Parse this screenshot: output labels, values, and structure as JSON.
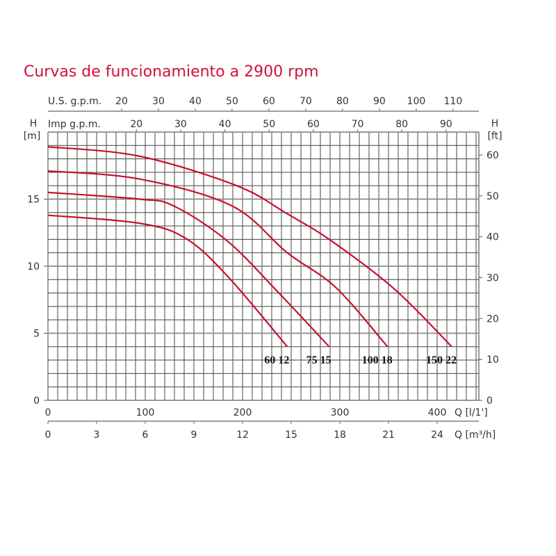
{
  "chart_data": {
    "type": "line",
    "title": "Curvas de funcionamiento a 2900 rpm",
    "curve_color": "#c8102e",
    "title_color": "#d0103a",
    "grid": true,
    "x_axis": {
      "label": "Q [l/1']",
      "range": [
        0,
        443
      ],
      "ticks": [
        0,
        100,
        200,
        300,
        400
      ],
      "minor_step": 10
    },
    "x_axis_m3h": {
      "label": "Q [m³/h]",
      "ticks": [
        0,
        3,
        6,
        9,
        12,
        15,
        18,
        21,
        24
      ]
    },
    "top_axis_us": {
      "label": "U.S. g.p.m.",
      "ticks": [
        20,
        30,
        40,
        50,
        60,
        70,
        80,
        90,
        100,
        110
      ]
    },
    "top_axis_imp": {
      "label": "Imp g.p.m.",
      "ticks": [
        20,
        30,
        40,
        50,
        60,
        70,
        80,
        90
      ]
    },
    "y_axis": {
      "label": "H",
      "unit": "[m]",
      "range": [
        0,
        20
      ],
      "ticks": [
        0,
        5,
        10,
        15
      ],
      "minor_step": 1
    },
    "y_axis_right": {
      "label": "H",
      "unit": "[ft]",
      "ticks": [
        0,
        10,
        20,
        30,
        40,
        50,
        60
      ]
    },
    "series": [
      {
        "name": "60 12",
        "x": [
          0,
          94,
          141,
          184,
          246
        ],
        "y": [
          13.8,
          13.2,
          12.1,
          9.3,
          4.0
        ]
      },
      {
        "name": "75 15",
        "x": [
          0,
          94,
          129,
          184,
          236,
          289
        ],
        "y": [
          15.5,
          15.0,
          14.5,
          11.9,
          8.1,
          4.0
        ]
      },
      {
        "name": "100 18",
        "x": [
          0,
          94,
          189,
          246,
          296,
          349
        ],
        "y": [
          17.1,
          16.5,
          14.5,
          11.0,
          8.4,
          4.0
        ]
      },
      {
        "name": "150 22",
        "x": [
          0,
          94,
          194,
          246,
          291,
          356,
          415
        ],
        "y": [
          18.9,
          18.2,
          16.0,
          13.9,
          11.9,
          8.3,
          4.0
        ]
      }
    ]
  }
}
